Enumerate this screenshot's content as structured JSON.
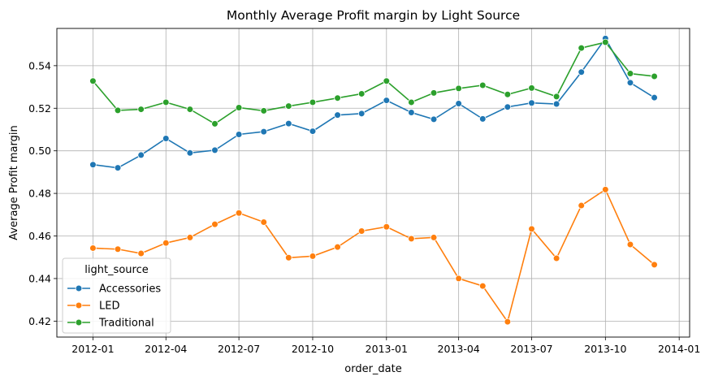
{
  "chart_data": {
    "type": "line",
    "title": "Monthly Average Profit margin by Light Source",
    "xlabel": "order_date",
    "ylabel": "Average Profit margin",
    "x": [
      "2012-01",
      "2012-02",
      "2012-03",
      "2012-04",
      "2012-05",
      "2012-06",
      "2012-07",
      "2012-08",
      "2012-09",
      "2012-10",
      "2012-11",
      "2012-12",
      "2013-01",
      "2013-02",
      "2013-03",
      "2013-04",
      "2013-05",
      "2013-06",
      "2013-07",
      "2013-08",
      "2013-09",
      "2013-10",
      "2013-11",
      "2013-12"
    ],
    "x_ticks": [
      "2012-01",
      "2012-04",
      "2012-07",
      "2012-10",
      "2013-01",
      "2013-04",
      "2013-07",
      "2013-10",
      "2014-01"
    ],
    "xlim": [
      "2011-11-17",
      "2014-01-14"
    ],
    "ylim": [
      0.4125,
      0.5575
    ],
    "y_ticks": [
      0.42,
      0.44,
      0.46,
      0.48,
      0.5,
      0.52,
      0.54
    ],
    "grid": true,
    "legend": {
      "title": "light_source",
      "placement": "lower-left"
    },
    "series": [
      {
        "name": "Accessories",
        "color": "#1f77b4",
        "values": [
          0.4935,
          0.492,
          0.498,
          0.5058,
          0.499,
          0.5003,
          0.5077,
          0.509,
          0.5128,
          0.5092,
          0.5168,
          0.5175,
          0.5237,
          0.518,
          0.5148,
          0.5222,
          0.515,
          0.5206,
          0.5225,
          0.522,
          0.537,
          0.5528,
          0.532,
          0.525
        ]
      },
      {
        "name": "LED",
        "color": "#ff7f0e",
        "values": [
          0.4543,
          0.4538,
          0.4518,
          0.4567,
          0.4593,
          0.4655,
          0.4708,
          0.4665,
          0.4498,
          0.4505,
          0.4548,
          0.4623,
          0.4643,
          0.4587,
          0.4593,
          0.44,
          0.4365,
          0.4197,
          0.4633,
          0.4495,
          0.4743,
          0.4818,
          0.456,
          0.4465
        ]
      },
      {
        "name": "Traditional",
        "color": "#2ca02c",
        "values": [
          0.5328,
          0.519,
          0.5195,
          0.5228,
          0.5195,
          0.5127,
          0.5203,
          0.5188,
          0.521,
          0.5228,
          0.5248,
          0.5268,
          0.5328,
          0.5228,
          0.5272,
          0.5293,
          0.5308,
          0.5265,
          0.5295,
          0.5255,
          0.5483,
          0.551,
          0.5363,
          0.535
        ]
      }
    ]
  }
}
